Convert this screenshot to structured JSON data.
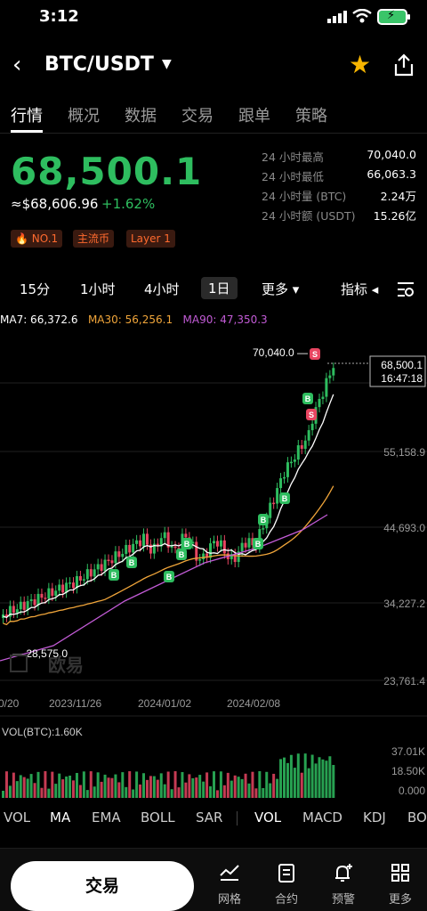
{
  "status_bar": {
    "time": "3:12"
  },
  "header": {
    "pair": "BTC/USDT"
  },
  "tabs": [
    "行情",
    "概况",
    "数据",
    "交易",
    "跟单",
    "策略"
  ],
  "price": {
    "last": "68,500.1",
    "usd": "≈$68,606.96",
    "change": "+1.62%",
    "up_color": "#2ebd5f",
    "down_color": "#e84561"
  },
  "badges": [
    "🔥 NO.1",
    "主流币",
    "Layer 1"
  ],
  "stats": [
    {
      "label": "24 小时最高",
      "value": "70,040.0"
    },
    {
      "label": "24 小时最低",
      "value": "66,063.3"
    },
    {
      "label": "24 小时量 (BTC)",
      "value": "2.24万"
    },
    {
      "label": "24 小时额 (USDT)",
      "value": "15.26亿"
    }
  ],
  "intervals": [
    "15分",
    "1小时",
    "4小时",
    "1日",
    "更多 ▾",
    "指标 ◂"
  ],
  "ma": {
    "ma7": "MA7: 66,372.6",
    "ma30": "MA30: 56,256.1",
    "ma90": "MA90: 47,350.3",
    "ma7_color": "#ffffff",
    "ma30_color": "#f0a53a",
    "ma90_color": "#c25bd6"
  },
  "chart_data": {
    "type": "candlestick",
    "y_ticks": [
      "55,158.9",
      "44,693.0",
      "34,227.2",
      "23,761.4"
    ],
    "x_ticks": [
      "0/20",
      "2023/11/26",
      "2024/01/02",
      "2024/02/08"
    ],
    "high_label": "70,040.0",
    "low_label": "28,575.0",
    "current_price": "68,500.1",
    "countdown": "16:47:18",
    "watermark": "欧易",
    "marker_buy": "B",
    "marker_sell": "S",
    "ylim": [
      23761.4,
      73000
    ]
  },
  "volume": {
    "label": "VOL(BTC):1.60K",
    "ticks": [
      "37.01K",
      "18.50K",
      "0.000"
    ]
  },
  "indicators": [
    "VOL",
    "MA",
    "EMA",
    "BOLL",
    "SAR",
    "VOL",
    "MACD",
    "KDJ",
    "BO"
  ],
  "bottom": {
    "trade": "交易",
    "nav": [
      "网格",
      "合约",
      "预警",
      "更多"
    ]
  }
}
